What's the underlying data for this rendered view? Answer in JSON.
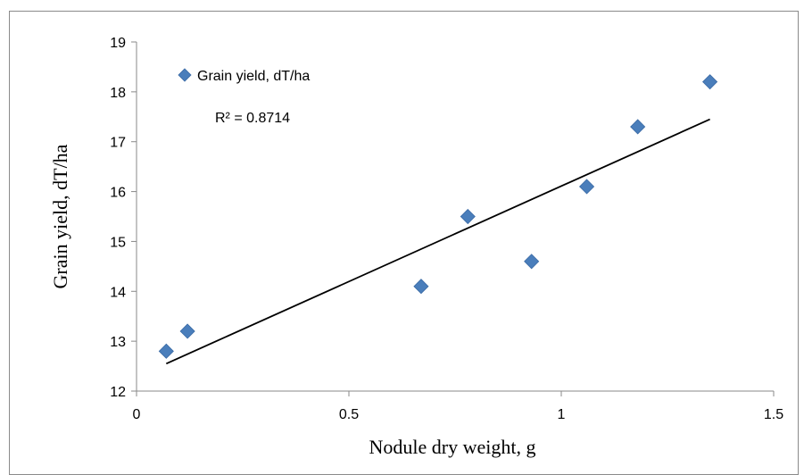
{
  "chart_data": {
    "type": "scatter",
    "xlabel": "Nodule dry weight, g",
    "ylabel": "Grain yield, dT/ha",
    "xlim": [
      0,
      1.5
    ],
    "ylim": [
      12,
      19
    ],
    "x_ticks": [
      0,
      0.5,
      1,
      1.5
    ],
    "x_tick_labels": [
      "0",
      "0.5",
      "1",
      "1.5"
    ],
    "y_ticks": [
      12,
      13,
      14,
      15,
      16,
      17,
      18,
      19
    ],
    "y_tick_labels": [
      "12",
      "13",
      "14",
      "15",
      "16",
      "17",
      "18",
      "19"
    ],
    "grid": false,
    "legend_position": "top-left",
    "series": [
      {
        "name": "Grain yield, dT/ha",
        "marker": "diamond",
        "color": "#4a7ebb",
        "x": [
          0.07,
          0.12,
          0.67,
          0.78,
          0.93,
          1.06,
          1.18,
          1.35
        ],
        "y": [
          12.8,
          13.2,
          14.1,
          15.5,
          14.6,
          16.1,
          17.3,
          18.2
        ]
      }
    ],
    "trendline": {
      "type": "linear",
      "color": "#000000",
      "x": [
        0.07,
        1.35
      ],
      "y": [
        12.55,
        17.45
      ]
    },
    "annotation": "R² = 0.8714"
  }
}
